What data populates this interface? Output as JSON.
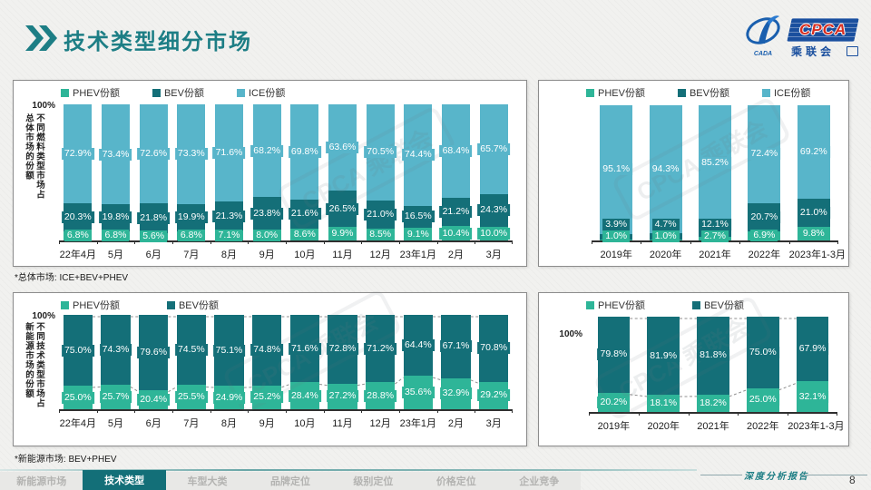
{
  "slide": {
    "title": "技术类型细分市场",
    "page_number": "8",
    "report_label": "深度分析报告",
    "watermark": "CPCA 乘联会",
    "logo": {
      "acronym": "CPCA",
      "cn": "乘联会",
      "emblem_text": "CADA"
    }
  },
  "colors": {
    "phev": "#2eb598",
    "bev": "#146f78",
    "ice": "#58b5ca",
    "accent": "#1d7e85"
  },
  "footnotes": {
    "overall": "*总体市场: ICE+BEV+PHEV",
    "nev": "*新能源市场:  BEV+PHEV"
  },
  "nav": {
    "tabs": [
      {
        "label": "新能源市场",
        "active": false
      },
      {
        "label": "技术类型",
        "active": true
      },
      {
        "label": "车型大类",
        "active": false
      },
      {
        "label": "品牌定位",
        "active": false
      },
      {
        "label": "级别定位",
        "active": false
      },
      {
        "label": "价格定位",
        "active": false
      },
      {
        "label": "企业竞争",
        "active": false
      }
    ]
  },
  "chart_data": [
    {
      "type": "bar",
      "stacked": true,
      "ylim": [
        0,
        100
      ],
      "ytick": "100%",
      "ylabel_lines": [
        "不同燃料类型市场占",
        "总体市场的份额"
      ],
      "legend_position": "top",
      "connectors": false,
      "bar_ratio": 0.74,
      "categories": [
        "22年4月",
        "5月",
        "6月",
        "7月",
        "8月",
        "9月",
        "10月",
        "11月",
        "12月",
        "23年1月",
        "2月",
        "3月"
      ],
      "series": [
        {
          "name": "PHEV份额",
          "color": "phev",
          "values": [
            6.8,
            6.8,
            5.6,
            6.8,
            7.1,
            8.0,
            8.6,
            9.9,
            8.5,
            9.1,
            10.4,
            10.0
          ]
        },
        {
          "name": "BEV份额",
          "color": "bev",
          "values": [
            20.3,
            19.8,
            21.8,
            19.9,
            21.3,
            23.8,
            21.6,
            26.5,
            21.0,
            16.5,
            21.2,
            24.3
          ]
        },
        {
          "name": "ICE份额",
          "color": "ice",
          "values": [
            72.9,
            73.4,
            72.6,
            73.3,
            71.6,
            68.2,
            69.8,
            63.6,
            70.5,
            74.4,
            68.4,
            65.7
          ]
        }
      ]
    },
    {
      "type": "bar",
      "stacked": true,
      "ylim": [
        0,
        100
      ],
      "ytick": null,
      "ylabel_lines": [],
      "legend_position": "top",
      "connectors": false,
      "bar_ratio": 0.66,
      "categories": [
        "2019年",
        "2020年",
        "2021年",
        "2022年",
        "2023年1-3月"
      ],
      "series": [
        {
          "name": "PHEV份额",
          "color": "phev",
          "values": [
            1.0,
            1.0,
            2.7,
            6.9,
            9.8
          ]
        },
        {
          "name": "BEV份额",
          "color": "bev",
          "values": [
            3.9,
            4.7,
            12.1,
            20.7,
            21.0
          ]
        },
        {
          "name": "ICE份额",
          "color": "ice",
          "values": [
            95.1,
            94.3,
            85.2,
            72.4,
            69.2
          ]
        }
      ]
    },
    {
      "type": "bar",
      "stacked": true,
      "ylim": [
        0,
        100
      ],
      "ytick": "100%",
      "ylabel_lines": [
        "不同技术类型市场占",
        "新能源市场的份额"
      ],
      "legend_position": "top",
      "connectors": true,
      "bar_ratio": 0.78,
      "categories": [
        "22年4月",
        "5月",
        "6月",
        "7月",
        "8月",
        "9月",
        "10月",
        "11月",
        "12月",
        "23年1月",
        "2月",
        "3月"
      ],
      "series": [
        {
          "name": "PHEV份额",
          "color": "phev",
          "values": [
            25.0,
            25.7,
            20.4,
            25.5,
            24.9,
            25.2,
            28.4,
            27.2,
            28.8,
            35.6,
            32.9,
            29.2
          ]
        },
        {
          "name": "BEV份额",
          "color": "bev",
          "values": [
            75.0,
            74.3,
            79.6,
            74.5,
            75.1,
            74.8,
            71.6,
            72.8,
            71.2,
            64.4,
            67.1,
            70.8
          ]
        }
      ]
    },
    {
      "type": "bar",
      "stacked": true,
      "ylim": [
        0,
        100
      ],
      "ytick": "100%",
      "ylabel_lines": [],
      "legend_position": "top",
      "connectors": true,
      "bar_ratio": 0.65,
      "categories": [
        "2019年",
        "2020年",
        "2021年",
        "2022年",
        "2023年1-3月"
      ],
      "series": [
        {
          "name": "PHEV份额",
          "color": "phev",
          "values": [
            20.2,
            18.1,
            18.2,
            25.0,
            32.1
          ]
        },
        {
          "name": "BEV份额",
          "color": "bev",
          "values": [
            79.8,
            81.9,
            81.8,
            75.0,
            67.9
          ]
        }
      ]
    }
  ]
}
